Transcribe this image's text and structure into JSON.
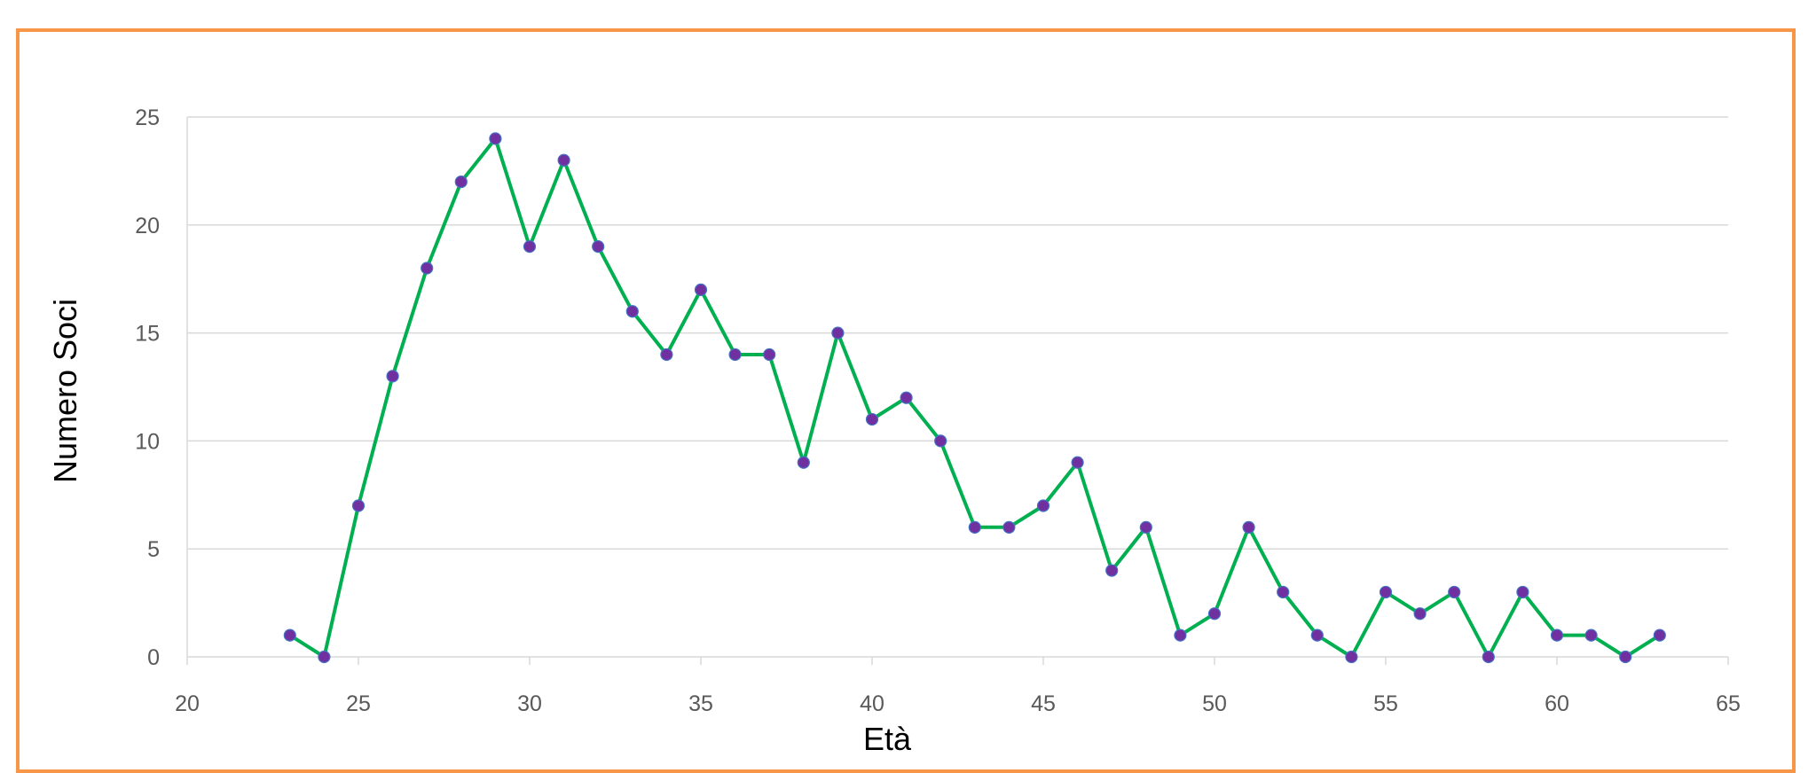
{
  "chart_data": {
    "type": "line",
    "title": "",
    "xlabel": "Età",
    "ylabel": "Numero Soci",
    "xlim": [
      20,
      65
    ],
    "ylim": [
      0,
      25
    ],
    "x_ticks": [
      20,
      25,
      30,
      35,
      40,
      45,
      50,
      55,
      60,
      65
    ],
    "y_ticks": [
      0,
      5,
      10,
      15,
      20,
      25
    ],
    "grid": true,
    "legend": "none",
    "series": [
      {
        "name": "",
        "x": [
          23,
          24,
          25,
          26,
          27,
          28,
          29,
          30,
          31,
          32,
          33,
          34,
          35,
          36,
          37,
          38,
          39,
          40,
          41,
          42,
          43,
          44,
          45,
          46,
          47,
          48,
          49,
          50,
          51,
          52,
          53,
          54,
          55,
          56,
          57,
          58,
          59,
          60,
          61,
          62,
          63
        ],
        "y": [
          1,
          0,
          7,
          13,
          18,
          22,
          24,
          19,
          23,
          19,
          16,
          14,
          17,
          14,
          14,
          9,
          15,
          11,
          12,
          10,
          6,
          6,
          7,
          9,
          4,
          6,
          1,
          2,
          6,
          3,
          1,
          0,
          3,
          2,
          3,
          0,
          3,
          1,
          1,
          0,
          1
        ],
        "line_color": "#00b050",
        "marker_color": "#7030a0"
      }
    ],
    "frame_color": "#f79646",
    "grid_color": "#d9d9d9"
  }
}
